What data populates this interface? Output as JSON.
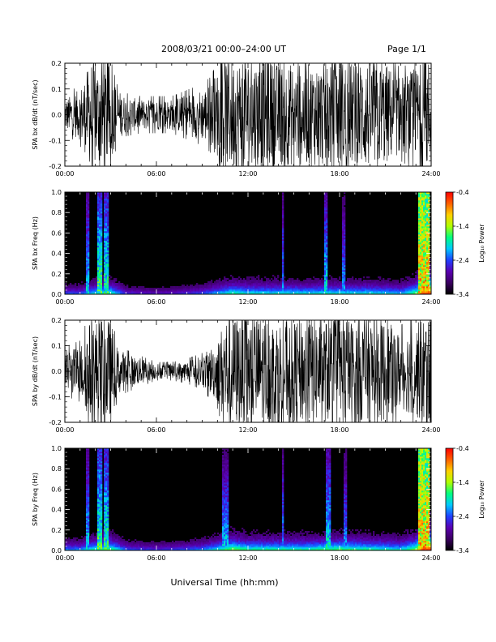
{
  "header": {
    "title": "2008/03/21   00:00–24:00 UT",
    "page": "Page 1/1"
  },
  "footer": {
    "xlabel": "Universal Time (hh:mm)"
  },
  "colorbar": {
    "min_label": "-3.4",
    "mid1_label": "-2.4",
    "mid2_label": "-1.4",
    "max_label": "-0.4",
    "title": "Log₁₀ Power",
    "colors": [
      "#000000",
      "#3b0060",
      "#5a00b0",
      "#1f3fff",
      "#00c8ff",
      "#00ff80",
      "#b0ff00",
      "#ffd000",
      "#ff6000",
      "#ff0000"
    ]
  },
  "chart_data": [
    {
      "type": "line",
      "id": "bx-timeseries",
      "ylabel": "SPA bx dB/dt (nT/sec)",
      "xlim_hours": [
        0,
        24
      ],
      "ylim": [
        -0.2,
        0.2
      ],
      "x_ticks": [
        "00:00",
        "06:00",
        "12:00",
        "18:00",
        "24:00"
      ],
      "y_ticks": [
        "-0.2",
        "-0.1",
        "0.0",
        "0.1",
        "0.2"
      ],
      "envelope": {
        "hours": [
          0,
          1,
          1.8,
          2.2,
          2.6,
          3.0,
          3.4,
          4,
          5,
          6,
          7,
          8,
          9,
          9.5,
          10,
          10.5,
          11,
          11.5,
          12,
          13,
          14,
          15,
          16,
          17,
          18,
          19,
          20,
          21,
          22,
          23,
          23.5,
          24
        ],
        "amplitude": [
          0.06,
          0.1,
          0.22,
          0.2,
          0.22,
          0.18,
          0.1,
          0.07,
          0.06,
          0.06,
          0.06,
          0.08,
          0.1,
          0.12,
          0.17,
          0.22,
          0.22,
          0.22,
          0.22,
          0.22,
          0.2,
          0.2,
          0.2,
          0.2,
          0.22,
          0.2,
          0.22,
          0.2,
          0.15,
          0.18,
          0.22,
          0.22
        ]
      }
    },
    {
      "type": "heatmap",
      "id": "bx-spectrogram",
      "ylabel": "SPA bx Freq (Hz)",
      "xlim_hours": [
        0,
        24
      ],
      "ylim_hz": [
        0,
        1
      ],
      "x_ticks": [
        "00:00",
        "06:00",
        "12:00",
        "18:00",
        "24:00"
      ],
      "y_ticks": [
        "0.0",
        "0.2",
        "0.4",
        "0.6",
        "0.8",
        "1.0"
      ],
      "zlim_log_power": [
        -3.4,
        -0.4
      ]
    },
    {
      "type": "line",
      "id": "by-timeseries",
      "ylabel": "SPA by dB/dt (nT/sec)",
      "xlim_hours": [
        0,
        24
      ],
      "ylim": [
        -0.2,
        0.2
      ],
      "x_ticks": [
        "00:00",
        "06:00",
        "12:00",
        "18:00",
        "24:00"
      ],
      "y_ticks": [
        "-0.2",
        "-0.1",
        "0.0",
        "0.1",
        "0.2"
      ],
      "envelope": {
        "hours": [
          0,
          1,
          1.8,
          2.2,
          2.6,
          3.0,
          3.4,
          4,
          5,
          6,
          7,
          8,
          9,
          9.5,
          10,
          10.5,
          11,
          11.5,
          12,
          13,
          14,
          15,
          16,
          17,
          18,
          19,
          20,
          21,
          22,
          23,
          23.5,
          24
        ],
        "amplitude": [
          0.08,
          0.1,
          0.22,
          0.2,
          0.22,
          0.2,
          0.1,
          0.07,
          0.05,
          0.03,
          0.03,
          0.04,
          0.06,
          0.09,
          0.12,
          0.22,
          0.22,
          0.22,
          0.22,
          0.22,
          0.2,
          0.2,
          0.22,
          0.2,
          0.22,
          0.2,
          0.22,
          0.2,
          0.15,
          0.18,
          0.22,
          0.22
        ]
      }
    },
    {
      "type": "heatmap",
      "id": "by-spectrogram",
      "ylabel": "SPA by Freq (Hz)",
      "xlim_hours": [
        0,
        24
      ],
      "ylim_hz": [
        0,
        1
      ],
      "x_ticks": [
        "00:00",
        "06:00",
        "12:00",
        "18:00",
        "24:00"
      ],
      "y_ticks": [
        "0.0",
        "0.2",
        "0.4",
        "0.6",
        "0.8",
        "1.0"
      ],
      "zlim_log_power": [
        -3.4,
        -0.4
      ]
    }
  ]
}
